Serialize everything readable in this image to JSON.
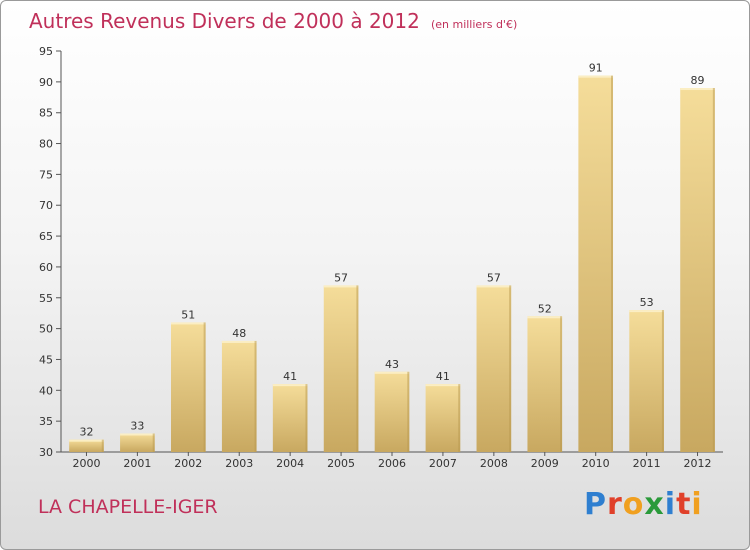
{
  "header": {
    "title": "Autres Revenus Divers de 2000 à 2012",
    "subtitle": "(en milliers d'€)"
  },
  "footer": {
    "commune": "LA CHAPELLE-IGER",
    "logo_letters": [
      "P",
      "r",
      "o",
      "x",
      "i",
      "t",
      "i"
    ],
    "logo_colors": [
      "#2f7fd0",
      "#e0402a",
      "#f0a020",
      "#2a9a3a",
      "#2f7fd0",
      "#e0402a",
      "#f0a020"
    ]
  },
  "colors": {
    "title": "#c0305a",
    "bar_light": "#f5dd9a",
    "bar_dark": "#c8a860",
    "axis": "#555555"
  },
  "chart_data": {
    "type": "bar",
    "title": "Autres Revenus Divers de 2000 à 2012",
    "subtitle": "(en milliers d'€)",
    "categories": [
      "2000",
      "2001",
      "2002",
      "2003",
      "2004",
      "2005",
      "2006",
      "2007",
      "2008",
      "2009",
      "2010",
      "2011",
      "2012"
    ],
    "values": [
      32,
      33,
      51,
      48,
      41,
      57,
      43,
      41,
      57,
      52,
      91,
      53,
      89
    ],
    "ylim": [
      30,
      95
    ],
    "yticks": [
      30,
      35,
      40,
      45,
      50,
      55,
      60,
      65,
      70,
      75,
      80,
      85,
      90,
      95
    ],
    "grid": false,
    "data_labels": true
  }
}
